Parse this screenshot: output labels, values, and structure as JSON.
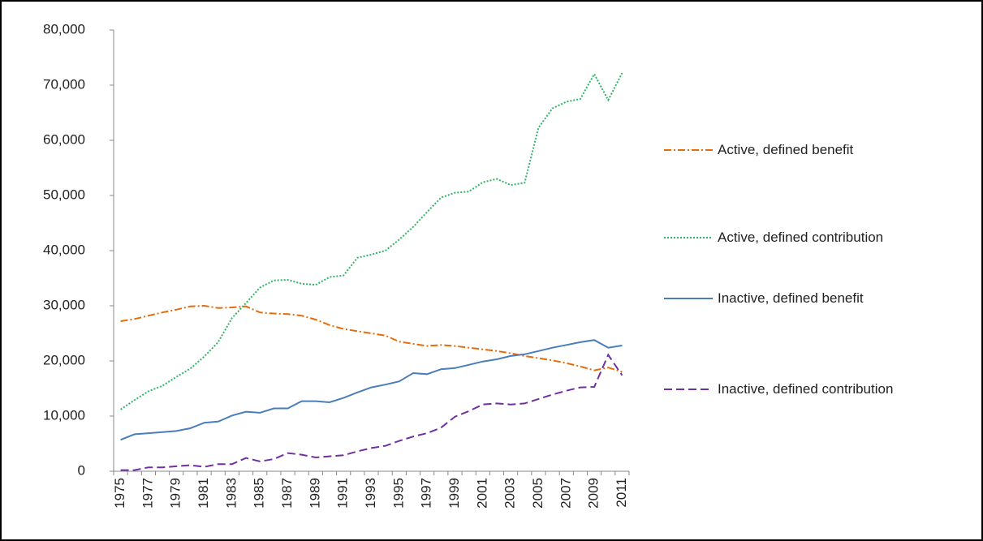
{
  "chart_data": {
    "type": "line",
    "categories": [
      "1975",
      null,
      "1977",
      null,
      "1979",
      null,
      "1981",
      null,
      "1983",
      null,
      "1985",
      null,
      "1987",
      null,
      "1989",
      null,
      "1991",
      null,
      "1993",
      null,
      "1995",
      null,
      "1997",
      null,
      "1999",
      null,
      "2001",
      null,
      "2003",
      null,
      "2005",
      null,
      "2007",
      null,
      "2009",
      null,
      "2011"
    ],
    "series": [
      {
        "name": "Active, defined benefit",
        "color": "#e46c0a",
        "dash": "9,3,2,3",
        "values": [
          27200,
          27600,
          28200,
          28800,
          29300,
          29900,
          30000,
          29600,
          29700,
          29900,
          28800,
          28600,
          28500,
          28200,
          27500,
          26500,
          25800,
          25400,
          25000,
          24600,
          23500,
          23100,
          22700,
          22900,
          22700,
          22400,
          22100,
          21800,
          21400,
          20900,
          20500,
          20100,
          19600,
          19000,
          18300,
          18800,
          18000
        ]
      },
      {
        "name": "Active, defined contribution",
        "color": "#2fb466",
        "dash": "2,2",
        "values": [
          11200,
          12900,
          14500,
          15500,
          17100,
          18600,
          20800,
          23400,
          27800,
          30500,
          33300,
          34600,
          34700,
          34000,
          33800,
          35200,
          35500,
          38700,
          39300,
          40000,
          42000,
          44300,
          47000,
          49600,
          50500,
          50700,
          52400,
          53000,
          51900,
          52300,
          62300,
          65800,
          67000,
          67500,
          72000,
          67300,
          72200
        ]
      },
      {
        "name": "Inactive, defined benefit",
        "color": "#4a7ebb",
        "dash": "none",
        "values": [
          5700,
          6700,
          6900,
          7100,
          7300,
          7800,
          8800,
          9000,
          10100,
          10800,
          10600,
          11400,
          11400,
          12700,
          12700,
          12500,
          13300,
          14300,
          15200,
          15700,
          16300,
          17800,
          17600,
          18500,
          18700,
          19300,
          19900,
          20300,
          20900,
          21200,
          21800,
          22400,
          22900,
          23400,
          23800,
          22400,
          22800
        ]
      },
      {
        "name": "Inactive, defined contribution",
        "color": "#7030a0",
        "dash": "10,5",
        "values": [
          200,
          200,
          700,
          700,
          900,
          1100,
          800,
          1300,
          1300,
          2400,
          1800,
          2200,
          3300,
          3000,
          2500,
          2700,
          2900,
          3600,
          4200,
          4600,
          5500,
          6300,
          6900,
          7900,
          9900,
          10900,
          12100,
          12300,
          12100,
          12300,
          13100,
          13900,
          14600,
          15200,
          15300,
          21100,
          17400
        ]
      }
    ],
    "ylim": [
      0,
      80000
    ],
    "yticks": [
      0,
      {
        "value": 10000,
        "label": "10,000"
      },
      {
        "value": 20000,
        "label": "20,000"
      },
      {
        "value": 30000,
        "label": "30,000"
      },
      {
        "value": 40000,
        "label": "40,000"
      },
      {
        "value": 50000,
        "label": "50,000"
      },
      {
        "value": 60000,
        "label": "60,000"
      },
      {
        "value": 70000,
        "label": "70,000"
      },
      {
        "value": 80000,
        "label": "80,000"
      }
    ],
    "grid": false,
    "legend": "right"
  }
}
